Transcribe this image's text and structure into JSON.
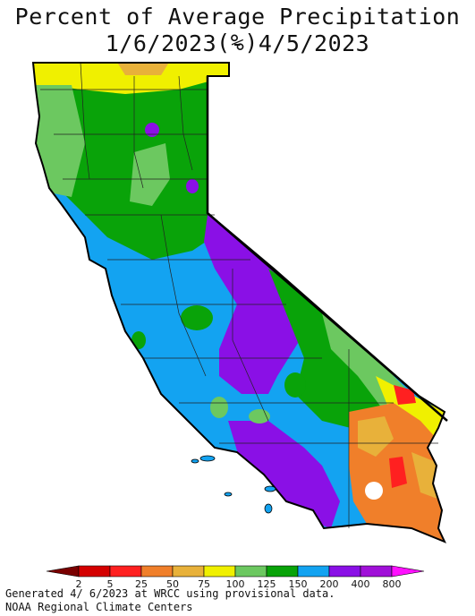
{
  "title": {
    "line1": "Percent of Average Precipitation (%)",
    "line2": "1/6/2023 - 4/5/2023"
  },
  "legend": {
    "bins": [
      {
        "color": "#7a0000"
      },
      {
        "color": "#d40000"
      },
      {
        "color": "#ff2020"
      },
      {
        "color": "#f07f2a"
      },
      {
        "color": "#e8b13a"
      },
      {
        "color": "#f0f000"
      },
      {
        "color": "#6cc860"
      },
      {
        "color": "#09a309"
      },
      {
        "color": "#13a3f1"
      },
      {
        "color": "#8a10e6"
      },
      {
        "color": "#a010d8"
      },
      {
        "color": "#ff10ff"
      }
    ],
    "ticks": [
      "2",
      "5",
      "25",
      "50",
      "75",
      "100",
      "125",
      "150",
      "200",
      "400",
      "800"
    ]
  },
  "footer": {
    "line1": "Generated 4/ 6/2023 at WRCC using provisional data.",
    "line2": "NOAA Regional Climate Centers"
  }
}
